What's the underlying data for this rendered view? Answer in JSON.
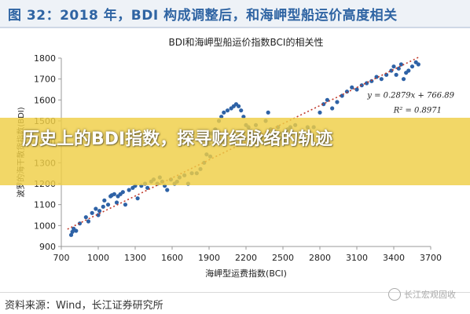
{
  "header": {
    "title": "图 32：2018 年，BDI 构成调整后，和海岬型船运价高度相关"
  },
  "overlay": {
    "text": "历史上的BDI指数，探寻财经脉络的轨迹"
  },
  "source": {
    "text": "资料来源：Wind，长江证券研究所"
  },
  "watermark": {
    "text": "长江宏观固收"
  },
  "colors": {
    "header_text": "#2f64a3",
    "points": "#2e62a6",
    "trendline": "#c0392b",
    "overlay": "#efce46"
  },
  "chart_data": {
    "type": "scatter",
    "title": "BDI和海岬型船运价指数BCI的相关性",
    "xlabel": "海岬型运费指数(BCI)",
    "ylabel": "波罗的海干散货指数(BDI)",
    "xlim": [
      700,
      3700
    ],
    "ylim": [
      900,
      1800
    ],
    "x_ticks": [
      "700",
      "1000",
      "1300",
      "1600",
      "1900",
      "2200",
      "2500",
      "2800",
      "3100",
      "3400",
      "3700"
    ],
    "y_ticks": [
      "900",
      "1000",
      "1100",
      "1200",
      "1300",
      "1400",
      "1500",
      "1600",
      "1700",
      "1800"
    ],
    "grid": false,
    "annotations": [
      "y = 0.2879x + 766.89",
      "R² = 0.8971"
    ],
    "trendline": {
      "slope": 0.2879,
      "intercept": 766.89,
      "x_range": [
        750,
        3600
      ],
      "style": "dotted"
    },
    "points": [
      [
        780,
        955
      ],
      [
        790,
        970
      ],
      [
        800,
        985
      ],
      [
        820,
        975
      ],
      [
        850,
        1010
      ],
      [
        900,
        1040
      ],
      [
        920,
        1020
      ],
      [
        950,
        1060
      ],
      [
        980,
        1080
      ],
      [
        1000,
        1050
      ],
      [
        1010,
        1070
      ],
      [
        1040,
        1090
      ],
      [
        1050,
        1120
      ],
      [
        1080,
        1100
      ],
      [
        1100,
        1140
      ],
      [
        1110,
        1145
      ],
      [
        1130,
        1150
      ],
      [
        1150,
        1110
      ],
      [
        1160,
        1140
      ],
      [
        1180,
        1150
      ],
      [
        1200,
        1160
      ],
      [
        1220,
        1100
      ],
      [
        1250,
        1170
      ],
      [
        1280,
        1180
      ],
      [
        1300,
        1190
      ],
      [
        1320,
        1130
      ],
      [
        1350,
        1190
      ],
      [
        1380,
        1200
      ],
      [
        1400,
        1180
      ],
      [
        1430,
        1210
      ],
      [
        1450,
        1220
      ],
      [
        1480,
        1200
      ],
      [
        1500,
        1230
      ],
      [
        1520,
        1210
      ],
      [
        1540,
        1190
      ],
      [
        1560,
        1170
      ],
      [
        1590,
        1220
      ],
      [
        1620,
        1200
      ],
      [
        1640,
        1210
      ],
      [
        1660,
        1230
      ],
      [
        1700,
        1240
      ],
      [
        1730,
        1200
      ],
      [
        1760,
        1250
      ],
      [
        1800,
        1250
      ],
      [
        1830,
        1270
      ],
      [
        1860,
        1300
      ],
      [
        1880,
        1340
      ],
      [
        1900,
        1390
      ],
      [
        1910,
        1330
      ],
      [
        1920,
        1440
      ],
      [
        1950,
        1460
      ],
      [
        1980,
        1500
      ],
      [
        2000,
        1520
      ],
      [
        2020,
        1540
      ],
      [
        2050,
        1550
      ],
      [
        2080,
        1560
      ],
      [
        2100,
        1570
      ],
      [
        2120,
        1580
      ],
      [
        2140,
        1570
      ],
      [
        2160,
        1550
      ],
      [
        2180,
        1520
      ],
      [
        2200,
        1480
      ],
      [
        2220,
        1470
      ],
      [
        2240,
        1450
      ],
      [
        2260,
        1430
      ],
      [
        2280,
        1480
      ],
      [
        2300,
        1450
      ],
      [
        2320,
        1420
      ],
      [
        2340,
        1400
      ],
      [
        2360,
        1500
      ],
      [
        2380,
        1540
      ],
      [
        2400,
        1460
      ],
      [
        2420,
        1430
      ],
      [
        2440,
        1440
      ],
      [
        2460,
        1470
      ],
      [
        2480,
        1420
      ],
      [
        2500,
        1440
      ],
      [
        2520,
        1400
      ],
      [
        2540,
        1460
      ],
      [
        2560,
        1470
      ],
      [
        2600,
        1480
      ],
      [
        2650,
        1410
      ],
      [
        2700,
        1470
      ],
      [
        2750,
        1470
      ],
      [
        2800,
        1540
      ],
      [
        2830,
        1580
      ],
      [
        2860,
        1600
      ],
      [
        2900,
        1560
      ],
      [
        2940,
        1590
      ],
      [
        2980,
        1620
      ],
      [
        3020,
        1640
      ],
      [
        3060,
        1660
      ],
      [
        3100,
        1650
      ],
      [
        3140,
        1670
      ],
      [
        3180,
        1680
      ],
      [
        3220,
        1690
      ],
      [
        3260,
        1710
      ],
      [
        3300,
        1700
      ],
      [
        3340,
        1720
      ],
      [
        3380,
        1740
      ],
      [
        3400,
        1760
      ],
      [
        3420,
        1720
      ],
      [
        3440,
        1750
      ],
      [
        3460,
        1770
      ],
      [
        3480,
        1700
      ],
      [
        3500,
        1730
      ],
      [
        3520,
        1740
      ],
      [
        3550,
        1760
      ],
      [
        3580,
        1780
      ],
      [
        3600,
        1770
      ]
    ]
  }
}
